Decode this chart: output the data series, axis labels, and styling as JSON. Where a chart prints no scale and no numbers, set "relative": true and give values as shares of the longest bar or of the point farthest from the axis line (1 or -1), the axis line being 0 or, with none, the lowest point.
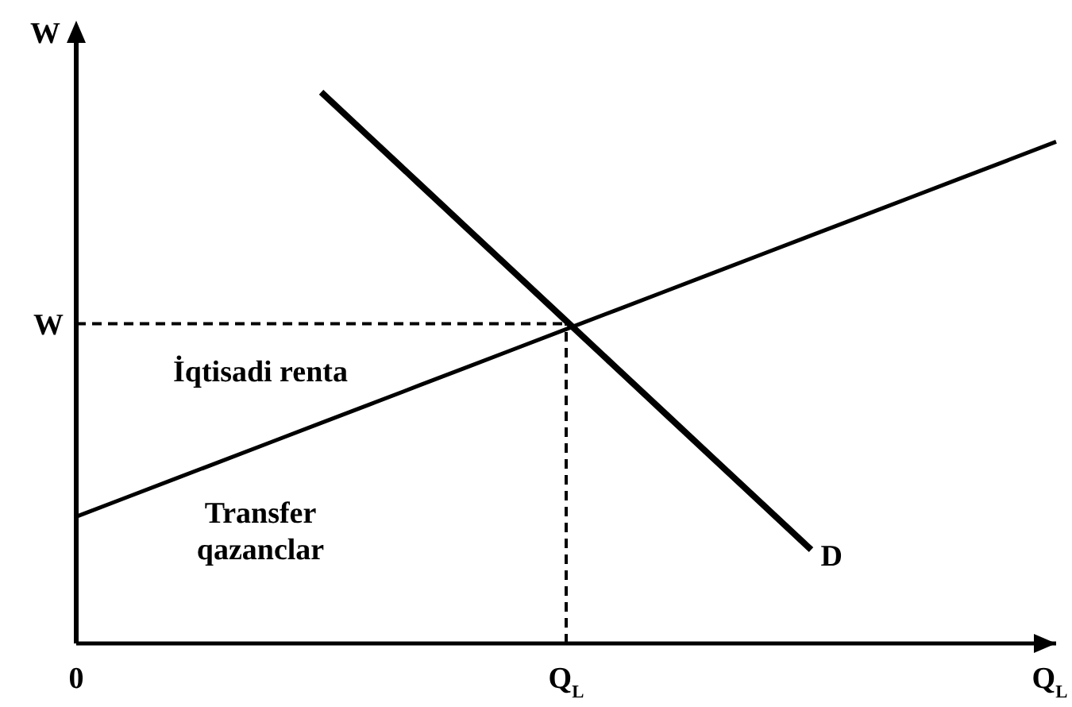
{
  "chart_data": {
    "type": "line",
    "relative": true,
    "ylabel": "W",
    "xlabel": "Q$_{L}$",
    "categories": [
      "0",
      null,
      null,
      null,
      null,
      null,
      null,
      null,
      null,
      null,
      "Q$_{L}$",
      null,
      null,
      null,
      null,
      null,
      null,
      null,
      null,
      null,
      null
    ],
    "series": [
      {
        "color": "#000000",
        "values": [
          0.23,
          0.264,
          0.298,
          0.332,
          0.366,
          0.4,
          0.434,
          0.468,
          0.502,
          0.536,
          0.57,
          0.604,
          0.638,
          0.672,
          0.706,
          0.74,
          0.774,
          0.808,
          0.842,
          0.876,
          0.91
        ]
      },
      {
        "name": "D",
        "color": "#000000",
        "values": [
          null,
          null,
          null,
          null,
          null,
          1,
          0.917,
          0.834,
          0.751,
          0.668,
          0.585,
          0.502,
          0.419,
          0.336,
          0.253,
          0.17,
          null,
          null,
          null,
          null,
          null
        ]
      }
    ],
    "ref_lines": [
      {
        "axis": "y",
        "value": 0.58,
        "label": "W",
        "line_style": "dashed"
      },
      {
        "axis": "x",
        "value": "Q$_{L}$",
        "line_style": "dashed"
      }
    ],
    "annotations": [
      "İqtisadi renta",
      "Transfer\nqazanclar"
    ],
    "marker": "none",
    "line_style": "solid"
  }
}
